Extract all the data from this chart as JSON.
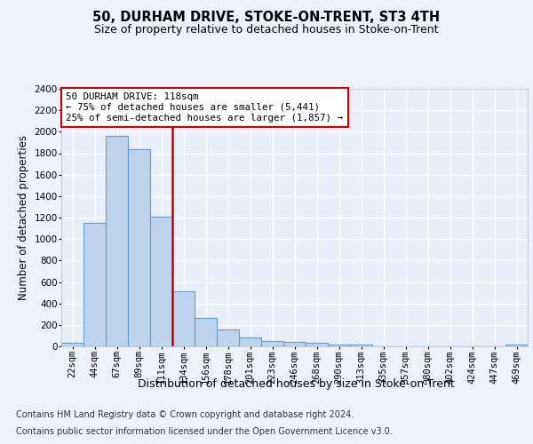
{
  "title": "50, DURHAM DRIVE, STOKE-ON-TRENT, ST3 4TH",
  "subtitle": "Size of property relative to detached houses in Stoke-on-Trent",
  "xlabel": "Distribution of detached houses by size in Stoke-on-Trent",
  "ylabel": "Number of detached properties",
  "categories": [
    "22sqm",
    "44sqm",
    "67sqm",
    "89sqm",
    "111sqm",
    "134sqm",
    "156sqm",
    "178sqm",
    "201sqm",
    "223sqm",
    "246sqm",
    "268sqm",
    "290sqm",
    "313sqm",
    "335sqm",
    "357sqm",
    "380sqm",
    "402sqm",
    "424sqm",
    "447sqm",
    "469sqm"
  ],
  "values": [
    30,
    1150,
    1960,
    1840,
    1210,
    510,
    265,
    155,
    80,
    50,
    45,
    35,
    20,
    15,
    0,
    0,
    0,
    0,
    0,
    0,
    15
  ],
  "bar_color": "#bdd4ec",
  "bar_edge_color": "#6699cc",
  "bar_linewidth": 0.8,
  "vline_x_idx": 4,
  "vline_color": "#cc0000",
  "annotation_text": "50 DURHAM DRIVE: 118sqm\n← 75% of detached houses are smaller (5,441)\n25% of semi-detached houses are larger (1,857) →",
  "annotation_box_color": "#cc0000",
  "ylim": [
    0,
    2400
  ],
  "yticks": [
    0,
    200,
    400,
    600,
    800,
    1000,
    1200,
    1400,
    1600,
    1800,
    2000,
    2200,
    2400
  ],
  "footer1": "Contains HM Land Registry data © Crown copyright and database right 2024.",
  "footer2": "Contains public sector information licensed under the Open Government Licence v3.0.",
  "bg_color": "#eef2f8",
  "plot_bg_color": "#e8eef8",
  "grid_color": "#ffffff",
  "title_fontsize": 10.5,
  "subtitle_fontsize": 9,
  "xlabel_fontsize": 9,
  "ylabel_fontsize": 8.5,
  "tick_fontsize": 7.5,
  "footer_fontsize": 7
}
